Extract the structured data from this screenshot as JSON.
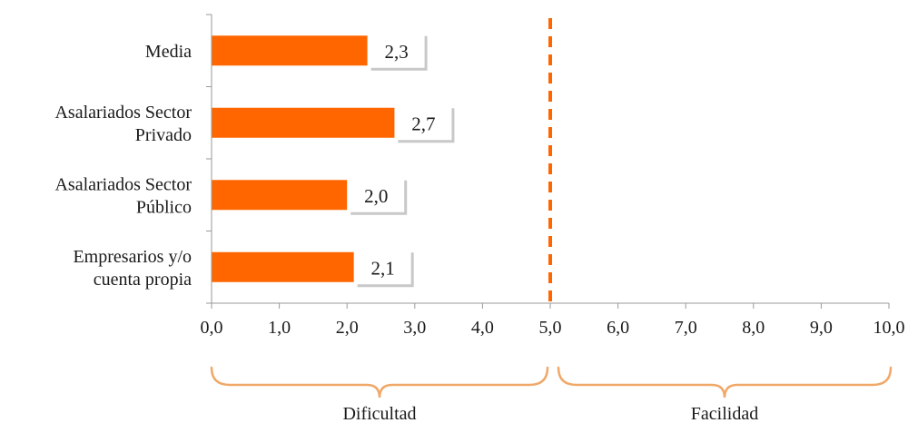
{
  "chart_data": {
    "type": "bar",
    "orientation": "horizontal",
    "categories": [
      [
        "Media"
      ],
      [
        "Asalariados Sector",
        "Privado"
      ],
      [
        "Asalariados Sector",
        "Público"
      ],
      [
        "Empresarios y/o",
        "cuenta propia"
      ]
    ],
    "values": [
      2.3,
      2.7,
      2.0,
      2.1
    ],
    "value_labels": [
      "2,3",
      "2,7",
      "2,0",
      "2,1"
    ],
    "xlim": [
      0,
      10
    ],
    "xticks": [
      "0,0",
      "1,0",
      "2,0",
      "3,0",
      "4,0",
      "5,0",
      "6,0",
      "7,0",
      "8,0",
      "9,0",
      "10,0"
    ],
    "reference_line": {
      "x": 5.0,
      "style": "dashed",
      "color": "#ff6600"
    },
    "regions": [
      {
        "label": "Dificultad",
        "from": 0,
        "to": 5
      },
      {
        "label": "Facilidad",
        "from": 5,
        "to": 10
      }
    ],
    "bar_color": "#ff6600",
    "brace_color": "#f0a868",
    "grid": false,
    "legend": "none"
  }
}
